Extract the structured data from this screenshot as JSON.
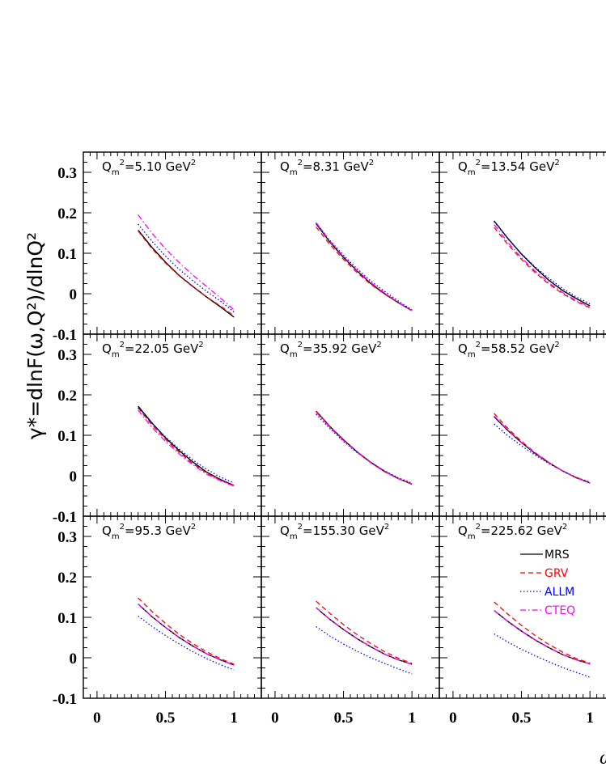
{
  "chart_data": {
    "type": "line",
    "ylabel": "γ*=dlnF(ω,Q²)/dlnQ²",
    "xlabel": "ω",
    "x_ticks": [
      "0",
      "0.5",
      "1"
    ],
    "y_ticks": [
      "0.3",
      "0.2",
      "0.1",
      "0",
      "-0.1"
    ],
    "xlim": [
      -0.1,
      1.2
    ],
    "ylim": [
      -0.1,
      0.35
    ],
    "legend_position": "bottom-right panel, right side",
    "series_styles": [
      {
        "name": "MRS",
        "color": "#000000",
        "dash": "solid"
      },
      {
        "name": "GRV",
        "color": "#ff0000",
        "dash": "dashed"
      },
      {
        "name": "ALLM",
        "color": "#0000ff",
        "dash": "dotted"
      },
      {
        "name": "CTEQ",
        "color": "#ff00ff",
        "dash": "dashdot"
      }
    ],
    "x": [
      0.3,
      0.4,
      0.5,
      0.6,
      0.7,
      0.8,
      0.9,
      1.0
    ],
    "panels": [
      {
        "label_main": "Q",
        "label_sub": "m",
        "label_mid": "=5.10 GeV",
        "series": [
          {
            "name": "MRS",
            "values": [
              0.157,
              0.115,
              0.078,
              0.045,
              0.018,
              -0.008,
              -0.032,
              -0.058
            ]
          },
          {
            "name": "GRV",
            "values": [
              0.155,
              0.112,
              0.076,
              0.044,
              0.017,
              -0.008,
              -0.03,
              -0.055
            ]
          },
          {
            "name": "ALLM",
            "values": [
              0.172,
              0.13,
              0.093,
              0.06,
              0.032,
              0.006,
              -0.018,
              -0.045
            ]
          },
          {
            "name": "CTEQ",
            "values": [
              0.195,
              0.15,
              0.111,
              0.077,
              0.046,
              0.018,
              -0.01,
              -0.04
            ]
          }
        ]
      },
      {
        "label_main": "Q",
        "label_sub": "m",
        "label_mid": "=8.31 GeV",
        "series": [
          {
            "name": "MRS",
            "values": [
              0.173,
              0.128,
              0.09,
              0.056,
              0.025,
              0.0,
              -0.022,
              -0.042
            ]
          },
          {
            "name": "GRV",
            "values": [
              0.165,
              0.122,
              0.085,
              0.052,
              0.023,
              -0.001,
              -0.022,
              -0.042
            ]
          },
          {
            "name": "ALLM",
            "values": [
              0.175,
              0.132,
              0.095,
              0.061,
              0.031,
              0.006,
              -0.018,
              -0.04
            ]
          },
          {
            "name": "CTEQ",
            "values": [
              0.176,
              0.13,
              0.092,
              0.057,
              0.027,
              0.002,
              -0.021,
              -0.042
            ]
          }
        ]
      },
      {
        "label_main": "Q",
        "label_sub": "m",
        "label_mid": "=13.54 GeV",
        "series": [
          {
            "name": "MRS",
            "values": [
              0.18,
              0.137,
              0.098,
              0.064,
              0.033,
              0.008,
              -0.012,
              -0.03
            ]
          },
          {
            "name": "GRV",
            "values": [
              0.164,
              0.122,
              0.085,
              0.052,
              0.024,
              0.0,
              -0.019,
              -0.035
            ]
          },
          {
            "name": "ALLM",
            "values": [
              0.178,
              0.136,
              0.099,
              0.066,
              0.038,
              0.013,
              -0.008,
              -0.025
            ]
          },
          {
            "name": "CTEQ",
            "values": [
              0.171,
              0.127,
              0.089,
              0.056,
              0.027,
              0.003,
              -0.017,
              -0.033
            ]
          }
        ]
      },
      {
        "label_main": "Q",
        "label_sub": "m",
        "label_mid": "=22.05 GeV",
        "series": [
          {
            "name": "MRS",
            "values": [
              0.172,
              0.131,
              0.094,
              0.062,
              0.034,
              0.009,
              -0.009,
              -0.024
            ]
          },
          {
            "name": "GRV",
            "values": [
              0.168,
              0.126,
              0.09,
              0.058,
              0.03,
              0.007,
              -0.011,
              -0.024
            ]
          },
          {
            "name": "ALLM",
            "values": [
              0.168,
              0.13,
              0.096,
              0.066,
              0.039,
              0.016,
              -0.003,
              -0.018
            ]
          },
          {
            "name": "CTEQ",
            "values": [
              0.162,
              0.12,
              0.085,
              0.054,
              0.027,
              0.004,
              -0.012,
              -0.026
            ]
          }
        ]
      },
      {
        "label_main": "Q",
        "label_sub": "m",
        "label_mid": "=35.92 GeV",
        "series": [
          {
            "name": "MRS",
            "values": [
              0.16,
              0.122,
              0.089,
              0.059,
              0.033,
              0.011,
              -0.007,
              -0.021
            ]
          },
          {
            "name": "GRV",
            "values": [
              0.16,
              0.122,
              0.088,
              0.058,
              0.032,
              0.01,
              -0.007,
              -0.02
            ]
          },
          {
            "name": "ALLM",
            "values": [
              0.152,
              0.117,
              0.085,
              0.057,
              0.033,
              0.012,
              -0.005,
              -0.018
            ]
          },
          {
            "name": "CTEQ",
            "values": [
              0.157,
              0.12,
              0.087,
              0.058,
              0.032,
              0.01,
              -0.007,
              -0.02
            ]
          }
        ]
      },
      {
        "label_main": "Q",
        "label_sub": "m",
        "label_mid": "=58.52 GeV",
        "series": [
          {
            "name": "MRS",
            "values": [
              0.146,
              0.112,
              0.082,
              0.055,
              0.032,
              0.012,
              -0.005,
              -0.018
            ]
          },
          {
            "name": "GRV",
            "values": [
              0.154,
              0.117,
              0.085,
              0.057,
              0.033,
              0.012,
              -0.004,
              -0.017
            ]
          },
          {
            "name": "ALLM",
            "values": [
              0.128,
              0.099,
              0.074,
              0.051,
              0.03,
              0.012,
              -0.004,
              -0.016
            ]
          },
          {
            "name": "CTEQ",
            "values": [
              0.148,
              0.113,
              0.083,
              0.056,
              0.032,
              0.012,
              -0.005,
              -0.018
            ]
          }
        ]
      },
      {
        "label_main": "Q",
        "label_sub": "m",
        "label_mid": "=95.3 GeV",
        "series": [
          {
            "name": "MRS",
            "values": [
              0.133,
              0.102,
              0.075,
              0.05,
              0.029,
              0.01,
              -0.005,
              -0.018
            ]
          },
          {
            "name": "GRV",
            "values": [
              0.148,
              0.115,
              0.085,
              0.058,
              0.035,
              0.015,
              -0.002,
              -0.016
            ]
          },
          {
            "name": "ALLM",
            "values": [
              0.103,
              0.078,
              0.055,
              0.034,
              0.015,
              -0.002,
              -0.017,
              -0.03
            ]
          },
          {
            "name": "CTEQ",
            "values": [
              0.133,
              0.102,
              0.075,
              0.05,
              0.029,
              0.01,
              -0.005,
              -0.018
            ]
          }
        ]
      },
      {
        "label_main": "Q",
        "label_sub": "m",
        "label_mid": "=155.30 GeV",
        "series": [
          {
            "name": "MRS",
            "values": [
              0.124,
              0.095,
              0.07,
              0.047,
              0.027,
              0.009,
              -0.005,
              -0.016
            ]
          },
          {
            "name": "GRV",
            "values": [
              0.14,
              0.11,
              0.082,
              0.057,
              0.035,
              0.015,
              -0.001,
              -0.014
            ]
          },
          {
            "name": "ALLM",
            "values": [
              0.077,
              0.054,
              0.034,
              0.016,
              0.0,
              -0.014,
              -0.027,
              -0.04
            ]
          },
          {
            "name": "CTEQ",
            "values": [
              0.124,
              0.095,
              0.07,
              0.047,
              0.027,
              0.009,
              -0.005,
              -0.016
            ]
          }
        ]
      },
      {
        "label_main": "Q",
        "label_sub": "m",
        "label_mid": "=225.62 GeV",
        "series": [
          {
            "name": "MRS",
            "values": [
              0.117,
              0.09,
              0.066,
              0.044,
              0.025,
              0.008,
              -0.005,
              -0.015
            ]
          },
          {
            "name": "GRV",
            "values": [
              0.138,
              0.108,
              0.08,
              0.055,
              0.033,
              0.014,
              -0.002,
              -0.013
            ]
          },
          {
            "name": "ALLM",
            "values": [
              0.059,
              0.039,
              0.021,
              0.005,
              -0.01,
              -0.024,
              -0.036,
              -0.048
            ]
          },
          {
            "name": "CTEQ",
            "values": [
              0.117,
              0.09,
              0.066,
              0.044,
              0.025,
              0.008,
              -0.005,
              -0.015
            ]
          }
        ]
      }
    ]
  }
}
